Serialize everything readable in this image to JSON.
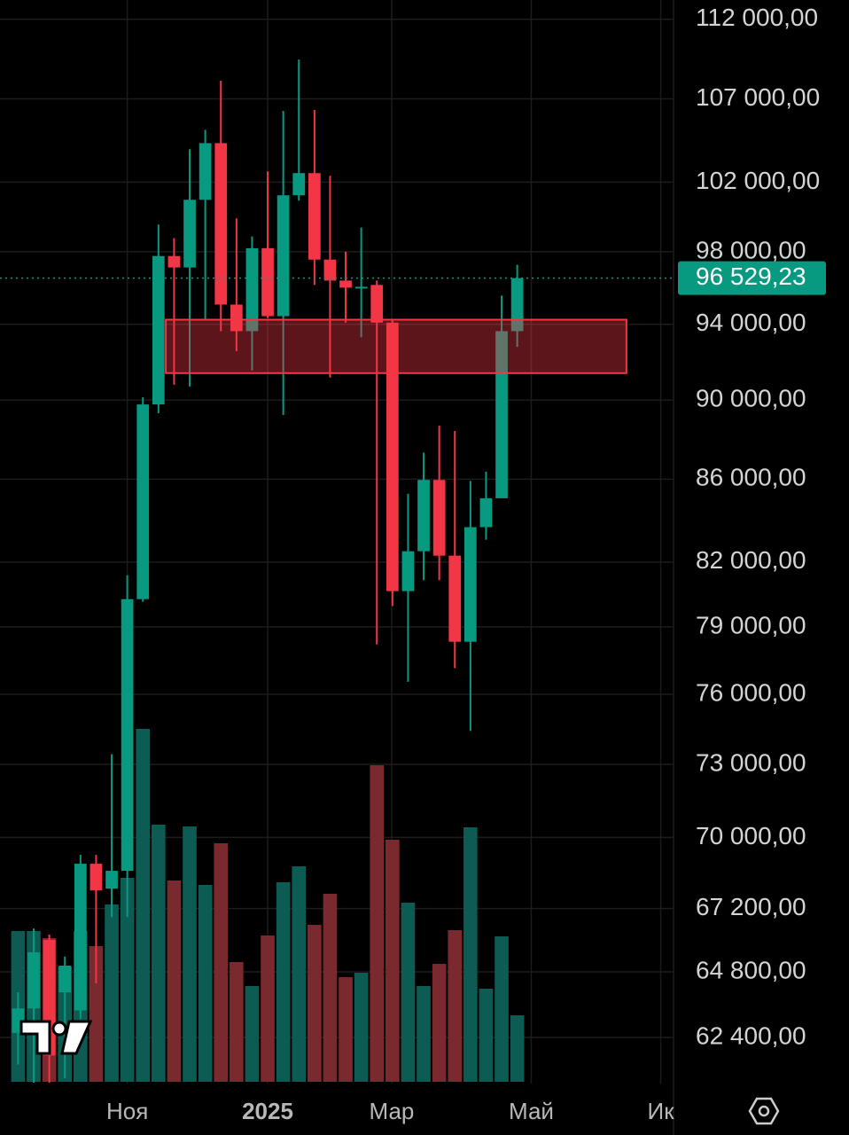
{
  "chart_data": {
    "type": "candlestick",
    "scale": "log",
    "x": [
      0,
      1,
      2,
      3,
      4,
      5,
      6,
      7,
      8,
      9,
      10,
      11,
      12,
      13,
      14,
      15,
      16,
      17,
      18,
      19,
      20,
      21,
      22,
      23,
      24,
      25,
      26,
      27,
      28,
      29,
      30,
      31,
      32
    ],
    "open": [
      62560,
      63450,
      66000,
      64040,
      63380,
      68950,
      67970,
      68670,
      80270,
      89770,
      97760,
      97120,
      100970,
      104310,
      95070,
      93630,
      98200,
      94440,
      101230,
      102530,
      97560,
      96390,
      96000,
      96150,
      94090,
      80640,
      82510,
      85960,
      82300,
      78330,
      83660,
      85060,
      93630
    ],
    "high": [
      64040,
      66430,
      66200,
      65370,
      69300,
      69300,
      73430,
      81380,
      90140,
      99540,
      98770,
      103950,
      105110,
      108110,
      99900,
      98870,
      102630,
      106260,
      109440,
      106320,
      102370,
      98000,
      99380,
      96390,
      94250,
      85280,
      87320,
      88680,
      88410,
      85910,
      86370,
      95560,
      97270
    ],
    "low": [
      61440,
      60800,
      60800,
      60960,
      63060,
      64370,
      66870,
      66870,
      80150,
      89320,
      90790,
      90700,
      94250,
      93630,
      92560,
      91540,
      94340,
      89230,
      100920,
      96150,
      91170,
      94090,
      93300,
      78210,
      79950,
      76550,
      81150,
      81150,
      77150,
      74420,
      83060,
      85060,
      92790
    ],
    "close": [
      63450,
      65530,
      61760,
      65030,
      68950,
      67900,
      68670,
      80270,
      89770,
      97760,
      97120,
      100970,
      104310,
      95070,
      93630,
      98200,
      94440,
      101230,
      102530,
      97560,
      96390,
      96000,
      96050,
      94090,
      80640,
      82510,
      85960,
      82300,
      78330,
      83660,
      85060,
      93630,
      96529.23
    ],
    "volume": [
      170,
      170,
      162,
      130,
      170,
      153,
      200,
      230,
      398,
      290,
      227,
      288,
      222,
      269,
      135,
      108,
      165,
      225,
      243,
      177,
      212,
      118,
      123,
      357,
      273,
      202,
      108,
      133,
      171,
      287,
      105,
      164,
      75
    ],
    "up_color": "#089981",
    "down_color": "#f23645",
    "volume_up_color": "#0d5c53",
    "volume_down_color": "#7a2a2e",
    "xlim": [
      -1.16,
      42.02
    ],
    "xticks": [
      {
        "value": 7,
        "label": "Ноя"
      },
      {
        "value": 16,
        "label": "2025"
      },
      {
        "value": 23.95,
        "label": "Мар"
      },
      {
        "value": 32.9,
        "label": "Май"
      },
      {
        "value": 41.2,
        "label": "Ик"
      }
    ],
    "ylim": [
      60770,
      113250
    ],
    "yticks": [
      {
        "value": 112000,
        "label": "112 000,00"
      },
      {
        "value": 107000,
        "label": "107 000,00"
      },
      {
        "value": 102000,
        "label": "102 000,00"
      },
      {
        "value": 98000,
        "label": "98 000,00"
      },
      {
        "value": 94000,
        "label": "94 000,00"
      },
      {
        "value": 90000,
        "label": "90 000,00"
      },
      {
        "value": 86000,
        "label": "86 000,00"
      },
      {
        "value": 82000,
        "label": "82 000,00"
      },
      {
        "value": 79000,
        "label": "79 000,00"
      },
      {
        "value": 76000,
        "label": "76 000,00"
      },
      {
        "value": 73000,
        "label": "73 000,00"
      },
      {
        "value": 70000,
        "label": "70 000,00"
      },
      {
        "value": 67200,
        "label": "67 200,00"
      },
      {
        "value": 64800,
        "label": "64 800,00"
      },
      {
        "value": 62400,
        "label": "62 400,00"
      }
    ],
    "grid": true,
    "zone": {
      "xlim": [
        9.47,
        39.0
      ],
      "ylim": [
        91400,
        94250
      ],
      "color": "#f23645"
    },
    "last_price": {
      "value": 96529.23,
      "label": "96 529,23",
      "color": "#089981"
    }
  }
}
